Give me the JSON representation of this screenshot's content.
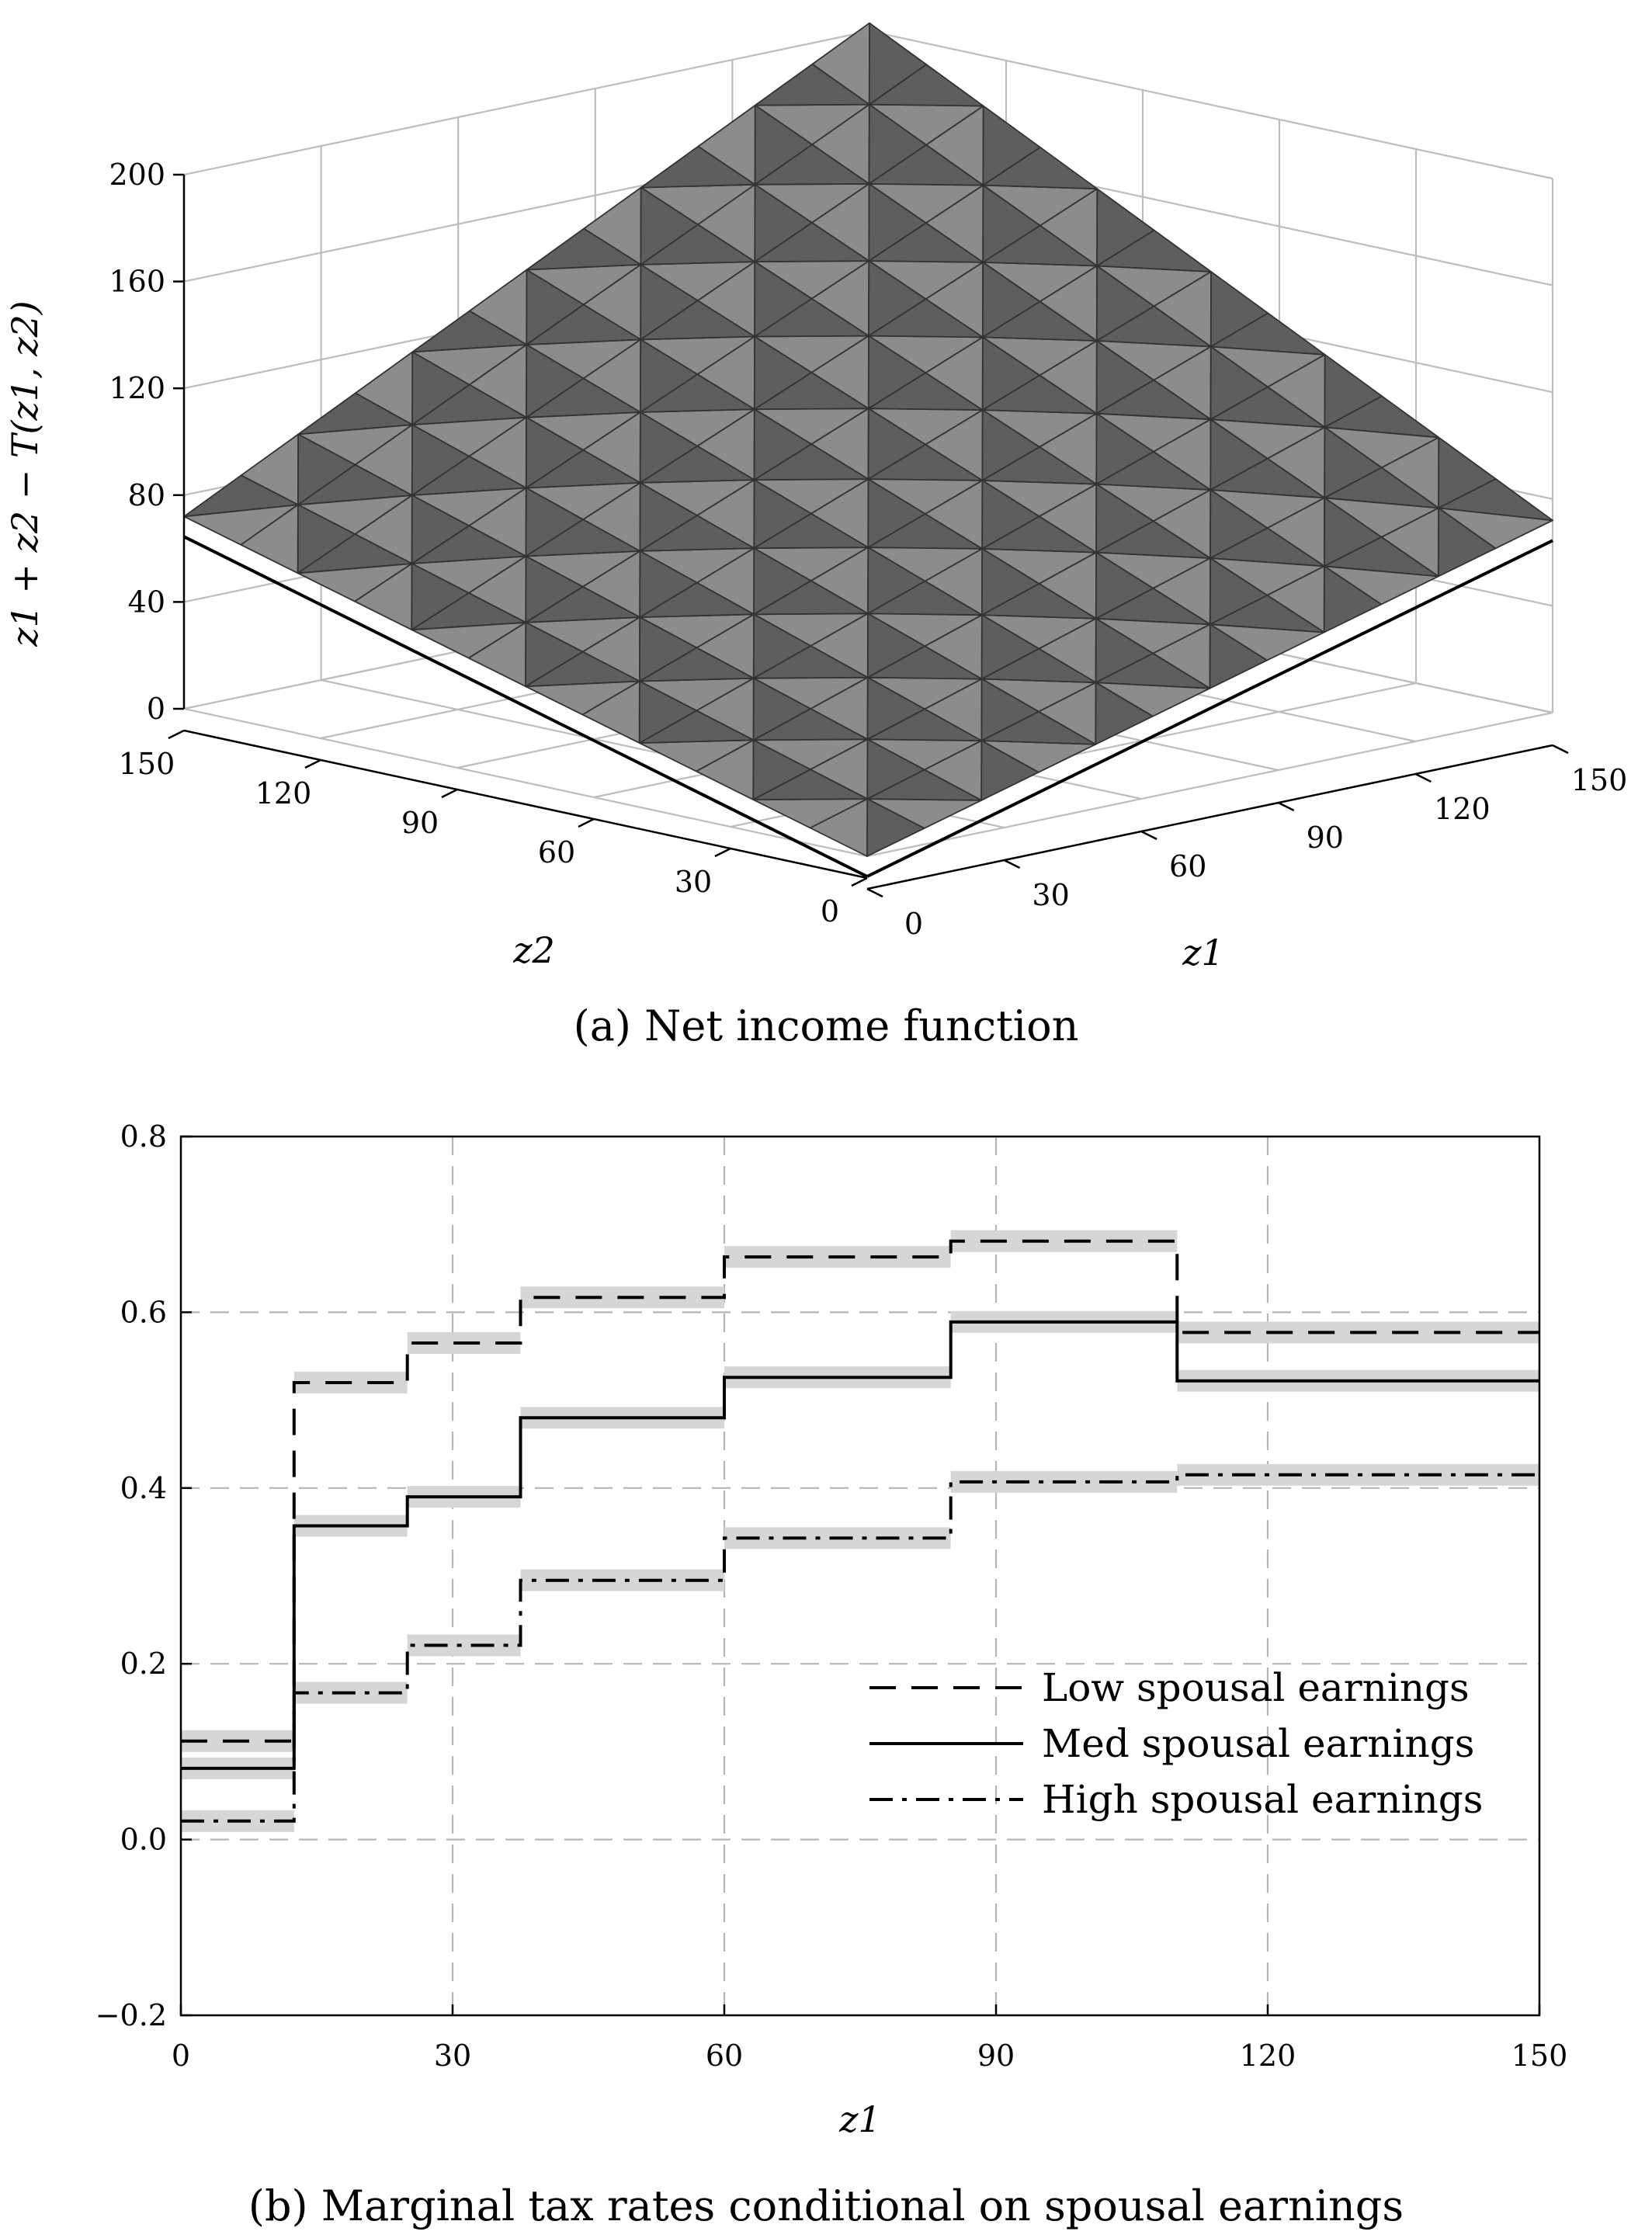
{
  "chart_data": [
    {
      "type": "surface",
      "caption": "(a) Net income function",
      "zlabel": "z1 + z2 − T(z1, z2)",
      "xlabel": "z1",
      "ylabel": "z2",
      "zlim": [
        0,
        200
      ],
      "xlim": [
        0,
        150
      ],
      "ylim": [
        0,
        150
      ],
      "zticks": [
        0,
        40,
        80,
        120,
        160,
        200
      ],
      "xticks": [
        0,
        30,
        60,
        90,
        120,
        150
      ],
      "yticks": [
        0,
        30,
        60,
        90,
        120,
        150
      ],
      "grid": true,
      "x_grid": [
        0,
        12.5,
        25,
        37.5,
        50,
        62.5,
        75,
        87.5,
        100,
        112.5,
        125,
        137.5,
        150
      ],
      "y_grid": [
        0,
        12.5,
        25,
        37.5,
        50,
        62.5,
        75,
        87.5,
        100,
        112.5,
        125,
        137.5,
        150
      ],
      "edge_z_at_150": 72,
      "corner_z_at_150_150": 203
    },
    {
      "type": "line",
      "caption": "(b) Marginal tax rates conditional on spousal earnings",
      "xlabel": "z1",
      "ylabel": "",
      "xlim": [
        0,
        150
      ],
      "ylim": [
        -0.2,
        0.8
      ],
      "xticks": [
        0,
        30,
        60,
        90,
        120,
        150
      ],
      "yticks": [
        "−0.2",
        "0.0",
        "0.2",
        "0.4",
        "0.6",
        "0.8"
      ],
      "grid": true,
      "legend_position": "lower-right",
      "series": [
        {
          "name": "Low spousal earnings",
          "style": "dashed",
          "steps": [
            {
              "x0": 0,
              "x1": 12.5,
              "y": 0.112
            },
            {
              "x0": 12.5,
              "x1": 25,
              "y": 0.52
            },
            {
              "x0": 25,
              "x1": 37.5,
              "y": 0.565
            },
            {
              "x0": 37.5,
              "x1": 60,
              "y": 0.617
            },
            {
              "x0": 60,
              "x1": 85,
              "y": 0.663
            },
            {
              "x0": 85,
              "x1": 110,
              "y": 0.681
            },
            {
              "x0": 110,
              "x1": 150,
              "y": 0.577
            }
          ]
        },
        {
          "name": "Med spousal earnings",
          "style": "solid",
          "steps": [
            {
              "x0": 0,
              "x1": 12.5,
              "y": 0.081
            },
            {
              "x0": 12.5,
              "x1": 25,
              "y": 0.357
            },
            {
              "x0": 25,
              "x1": 37.5,
              "y": 0.39
            },
            {
              "x0": 37.5,
              "x1": 60,
              "y": 0.48
            },
            {
              "x0": 60,
              "x1": 85,
              "y": 0.526
            },
            {
              "x0": 85,
              "x1": 110,
              "y": 0.589
            },
            {
              "x0": 110,
              "x1": 150,
              "y": 0.522
            }
          ]
        },
        {
          "name": "High spousal earnings",
          "style": "dashdot",
          "steps": [
            {
              "x0": 0,
              "x1": 12.5,
              "y": 0.021
            },
            {
              "x0": 12.5,
              "x1": 25,
              "y": 0.167
            },
            {
              "x0": 25,
              "x1": 37.5,
              "y": 0.221
            },
            {
              "x0": 37.5,
              "x1": 60,
              "y": 0.295
            },
            {
              "x0": 60,
              "x1": 85,
              "y": 0.343
            },
            {
              "x0": 85,
              "x1": 110,
              "y": 0.407
            },
            {
              "x0": 110,
              "x1": 150,
              "y": 0.415
            }
          ]
        }
      ]
    }
  ]
}
